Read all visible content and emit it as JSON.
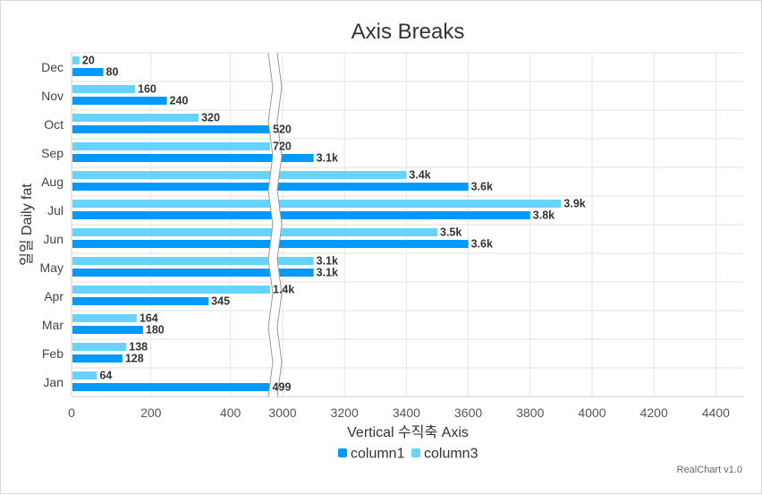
{
  "chart_data": {
    "type": "bar",
    "orientation": "horizontal",
    "title": "Axis Breaks",
    "xlabel": "Vertical 수직축 Axis",
    "ylabel": "일일 Daily fat",
    "categories": [
      "Jan",
      "Feb",
      "Mar",
      "Apr",
      "May",
      "Jun",
      "Jul",
      "Aug",
      "Sep",
      "Oct",
      "Nov",
      "Dec"
    ],
    "series": [
      {
        "name": "column1",
        "color": "#0099ff",
        "values": [
          499,
          128,
          180,
          345,
          3100,
          3600,
          3800,
          3600,
          3100,
          520,
          240,
          80
        ],
        "labels": [
          "499",
          "128",
          "180",
          "345",
          "3.1k",
          "3.6k",
          "3.8k",
          "3.6k",
          "3.1k",
          "520",
          "240",
          "80"
        ]
      },
      {
        "name": "column3",
        "color": "#66d4ff",
        "values": [
          64,
          138,
          164,
          1400,
          3100,
          3500,
          3900,
          3400,
          720,
          320,
          160,
          20
        ],
        "labels": [
          "64",
          "138",
          "164",
          "1.4k",
          "3.1k",
          "3.5k",
          "3.9k",
          "3.4k",
          "720",
          "320",
          "160",
          "20"
        ]
      }
    ],
    "axis_break": {
      "from": 500,
      "to": 3000
    },
    "xticks": [
      "0",
      "200",
      "400",
      "3000",
      "3200",
      "3400",
      "3600",
      "3800",
      "4000",
      "4200",
      "4400"
    ],
    "xlim": [
      0,
      4500
    ],
    "grid": true,
    "legend_position": "bottom"
  },
  "credit": "RealChart v1.0"
}
